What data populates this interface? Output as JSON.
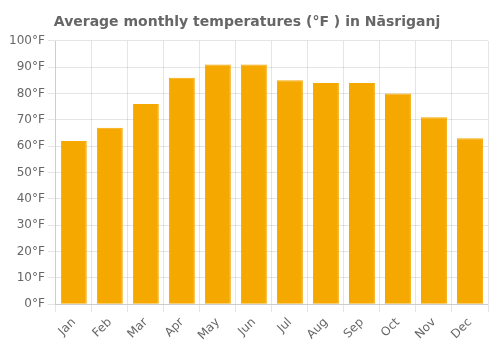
{
  "chart_data": {
    "type": "bar",
    "title": "Average monthly temperatures (°F ) in Nāsriganj",
    "categories": [
      "Jan",
      "Feb",
      "Mar",
      "Apr",
      "May",
      "Jun",
      "Jul",
      "Aug",
      "Sep",
      "Oct",
      "Nov",
      "Dec"
    ],
    "values": [
      62,
      67,
      76,
      86,
      91,
      91,
      85,
      84,
      84,
      80,
      71,
      63
    ],
    "color": "#F5A800",
    "ylim": [
      0,
      100
    ],
    "yticks": [
      {
        "value": 0,
        "label": "0°F"
      },
      {
        "value": 10,
        "label": "10°F"
      },
      {
        "value": 20,
        "label": "20°F"
      },
      {
        "value": 30,
        "label": "30°F"
      },
      {
        "value": 40,
        "label": "40°F"
      },
      {
        "value": 50,
        "label": "50°F"
      },
      {
        "value": 60,
        "label": "60°F"
      },
      {
        "value": 70,
        "label": "70°F"
      },
      {
        "value": 80,
        "label": "80°F"
      },
      {
        "value": 90,
        "label": "90°F"
      },
      {
        "value": 100,
        "label": "100°F"
      }
    ],
    "grid": true
  }
}
